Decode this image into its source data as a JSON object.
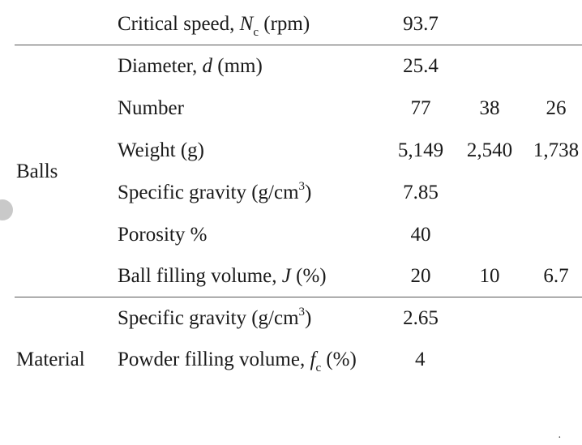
{
  "table": {
    "rows": [
      {
        "group": "",
        "param_pre": "Critical speed, ",
        "sym": "N",
        "sub": "c",
        "sup": "",
        "param_post": " (rpm)",
        "values": [
          "93.7",
          "",
          ""
        ]
      },
      {
        "group": "Balls",
        "param_pre": "Diameter, ",
        "sym": "d",
        "sub": "",
        "sup": "",
        "param_post": " (mm)",
        "values": [
          "25.4",
          "",
          ""
        ]
      },
      {
        "group": "Balls",
        "param_pre": "Number",
        "sym": "",
        "sub": "",
        "sup": "",
        "param_post": "",
        "values": [
          "77",
          "38",
          "26"
        ]
      },
      {
        "group": "Balls",
        "param_pre": "Weight (g)",
        "sym": "",
        "sub": "",
        "sup": "",
        "param_post": "",
        "values": [
          "5,149",
          "2,540",
          "1,738"
        ]
      },
      {
        "group": "Balls",
        "param_pre": "Specific gravity (g/cm",
        "sym": "",
        "sub": "",
        "sup": "3",
        "param_post": ")",
        "values": [
          "7.85",
          "",
          ""
        ]
      },
      {
        "group": "Balls",
        "param_pre": "Porosity %",
        "sym": "",
        "sub": "",
        "sup": "",
        "param_post": "",
        "values": [
          "40",
          "",
          ""
        ]
      },
      {
        "group": "Balls",
        "param_pre": "Ball filling volume, ",
        "sym": "J",
        "sub": "",
        "sup": "",
        "param_post": " (%)",
        "values": [
          "20",
          "10",
          "6.7"
        ]
      },
      {
        "group": "Material",
        "param_pre": "Specific gravity (g/cm",
        "sym": "",
        "sub": "",
        "sup": "3",
        "param_post": ")",
        "values": [
          "2.65",
          "",
          ""
        ]
      },
      {
        "group": "Material",
        "param_pre": "Powder filling volume, ",
        "sym": "f",
        "sub": "c",
        "sup": "",
        "param_post": " (%)",
        "values": [
          "4",
          "",
          ""
        ]
      }
    ],
    "group_labels": {
      "balls": "Balls",
      "material": "Material"
    }
  },
  "corner_mark": "·"
}
